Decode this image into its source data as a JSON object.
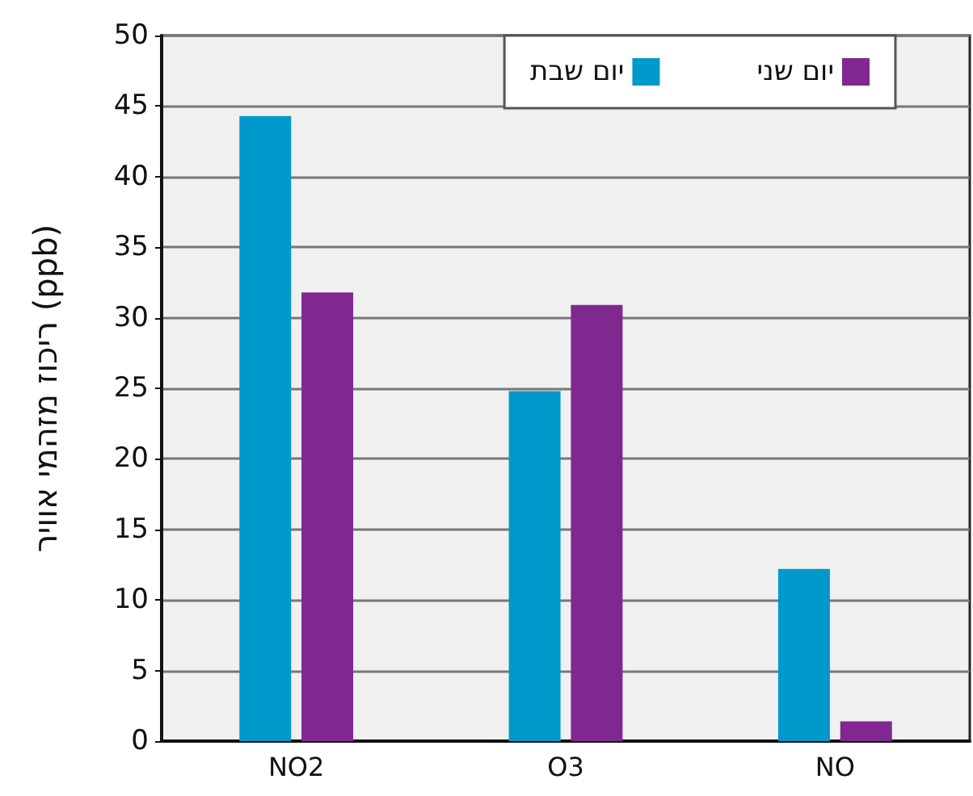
{
  "chart_data": {
    "type": "bar",
    "ylabel": "ריכוז מזהמי אוויר (ppb)",
    "categories": [
      "NO2",
      "O3",
      "NO"
    ],
    "series": [
      {
        "name": "יום שבת",
        "color": "#0099cc",
        "values": [
          44.3,
          24.8,
          12.2
        ]
      },
      {
        "name": "יום שני",
        "color": "#80288f",
        "values": [
          31.8,
          30.9,
          1.4
        ]
      }
    ],
    "ylim": [
      0,
      50
    ],
    "yticks": [
      0,
      5,
      10,
      15,
      20,
      25,
      30,
      35,
      40,
      45,
      50
    ],
    "grid": "y",
    "legend": "top right"
  }
}
